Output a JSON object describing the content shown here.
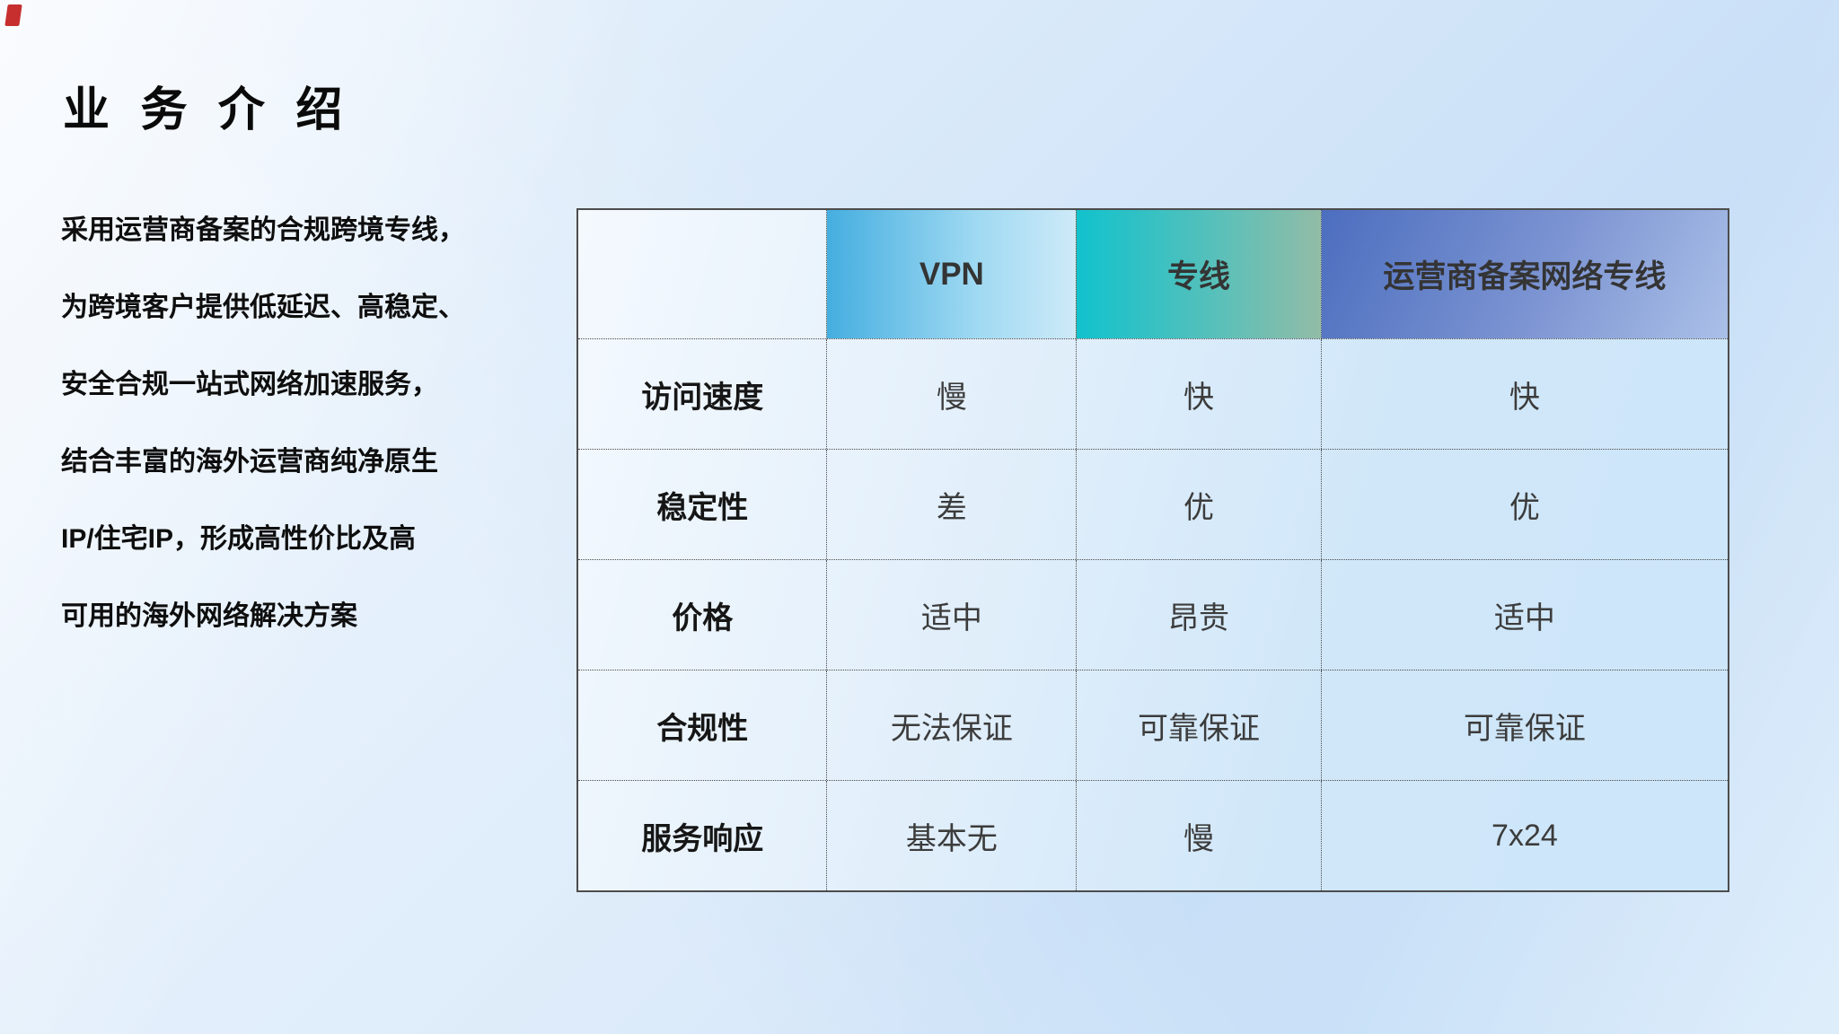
{
  "slide": {
    "title": "业 务 介 绍",
    "intro_lines": [
      "采用运营商备案的合规跨境专线，",
      "为跨境客户提供低延迟、高稳定、",
      "安全合规一站式网络加速服务，",
      "结合丰富的海外运营商纯净原生",
      "IP/住宅IP，形成高性价比及高",
      "可用的海外网络解决方案"
    ]
  },
  "comparison_table": {
    "columns": [
      "",
      "VPN",
      "专线",
      "运营商备案网络专线"
    ],
    "rows": [
      {
        "label": "访问速度",
        "values": [
          "慢",
          "快",
          "快"
        ]
      },
      {
        "label": "稳定性",
        "values": [
          "差",
          "优",
          "优"
        ]
      },
      {
        "label": "价格",
        "values": [
          "适中",
          "昂贵",
          "适中"
        ]
      },
      {
        "label": "合规性",
        "values": [
          "无法保证",
          "可靠保证",
          "可靠保证"
        ]
      },
      {
        "label": "服务响应",
        "values": [
          "基本无",
          "慢",
          "7x24"
        ]
      }
    ]
  },
  "colors": {
    "background_gradient": [
      "#edf4fc",
      "#c8dff7"
    ],
    "vpn_header_gradient": [
      "#45aee0",
      "#cdeaf8"
    ],
    "dedicated_line_header_gradient": [
      "#11c2cd",
      "#92bca6"
    ],
    "carrier_line_header_gradient": [
      "#4c6ebf",
      "#abc0e8"
    ],
    "table_border": "#4d4d4d",
    "title_text": "#0a0a0a",
    "cell_text": "#3c3c3c",
    "corner_accent": "#c42424"
  }
}
